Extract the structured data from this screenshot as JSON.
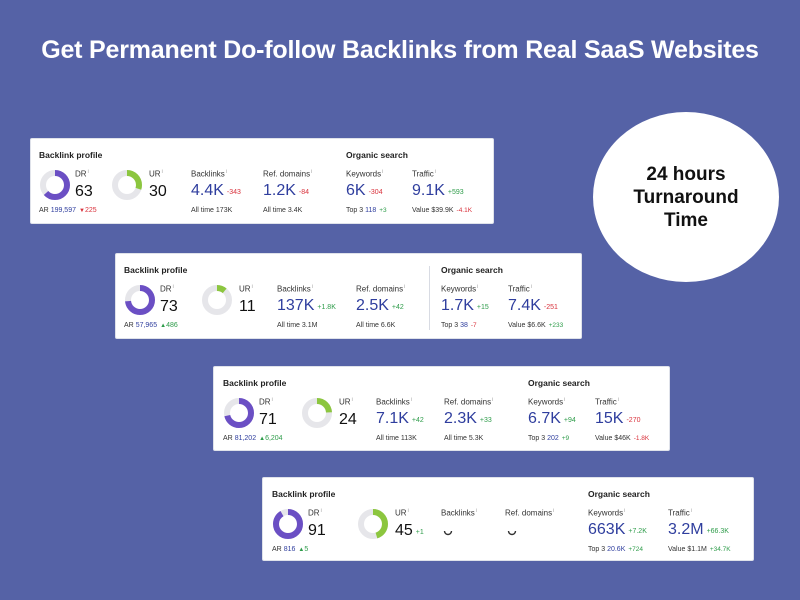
{
  "headline": "Get Permanent Do-follow Backlinks from Real SaaS Websites",
  "badge": {
    "line1": "24 hours",
    "line2": "Turnaround",
    "line3": "Time"
  },
  "colors": {
    "background": "#5562a6",
    "dr_ring": "#6b4fc4",
    "ur_ring": "#8cc63f",
    "ring_track": "#e6e6ea",
    "link_blue": "#2f3e9e",
    "negative": "#d9323c",
    "positive": "#2e9c4a"
  },
  "labels": {
    "backlink_profile": "Backlink profile",
    "organic_search": "Organic search",
    "dr": "DR",
    "ur": "UR",
    "backlinks": "Backlinks",
    "ref_domains": "Ref. domains",
    "keywords": "Keywords",
    "traffic": "Traffic",
    "info": "i",
    "ar": "AR",
    "all_time": "All time",
    "top3": "Top 3",
    "value": "Value"
  },
  "cards": [
    {
      "dr": "63",
      "dr_fill": 0.63,
      "ur": "30",
      "ur_fill": 0.3,
      "ur_delta": "",
      "ar": "199,597",
      "ar_delta": "225",
      "ar_dir": "down",
      "backlinks": "4.4K",
      "backlinks_delta": "-343",
      "backlinks_all_time": "173K",
      "ref_domains": "1.2K",
      "ref_domains_delta": "-84",
      "ref_domains_all_time": "3.4K",
      "keywords": "6K",
      "keywords_delta": "-304",
      "top3": "118",
      "top3_delta": "+3",
      "traffic": "9.1K",
      "traffic_delta": "+593",
      "value": "$39.9K",
      "value_delta": "-4.1K"
    },
    {
      "dr": "73",
      "dr_fill": 0.73,
      "ur": "11",
      "ur_fill": 0.11,
      "ur_delta": "",
      "ar": "57,965",
      "ar_delta": "486",
      "ar_dir": "up",
      "backlinks": "137K",
      "backlinks_delta": "+1.8K",
      "backlinks_all_time": "3.1M",
      "ref_domains": "2.5K",
      "ref_domains_delta": "+42",
      "ref_domains_all_time": "6.6K",
      "keywords": "1.7K",
      "keywords_delta": "+15",
      "top3": "38",
      "top3_delta": "-7",
      "traffic": "7.4K",
      "traffic_delta": "-251",
      "value": "$6.6K",
      "value_delta": "+233"
    },
    {
      "dr": "71",
      "dr_fill": 0.71,
      "ur": "24",
      "ur_fill": 0.24,
      "ur_delta": "",
      "ar": "81,202",
      "ar_delta": "6,204",
      "ar_dir": "up",
      "backlinks": "7.1K",
      "backlinks_delta": "+42",
      "backlinks_all_time": "113K",
      "ref_domains": "2.3K",
      "ref_domains_delta": "+33",
      "ref_domains_all_time": "5.3K",
      "keywords": "6.7K",
      "keywords_delta": "+94",
      "top3": "202",
      "top3_delta": "+9",
      "traffic": "15K",
      "traffic_delta": "-270",
      "value": "$46K",
      "value_delta": "-1.8K"
    },
    {
      "dr": "91",
      "dr_fill": 0.91,
      "ur": "45",
      "ur_fill": 0.45,
      "ur_delta": "+1",
      "ar": "816",
      "ar_delta": "5",
      "ar_dir": "up",
      "backlinks": "",
      "ref_domains": "",
      "loading": true,
      "keywords": "663K",
      "keywords_delta": "+7.2K",
      "top3": "20.6K",
      "top3_delta": "+724",
      "traffic": "3.2M",
      "traffic_delta": "+66.3K",
      "value": "$1.1M",
      "value_delta": "+34.7K"
    }
  ]
}
